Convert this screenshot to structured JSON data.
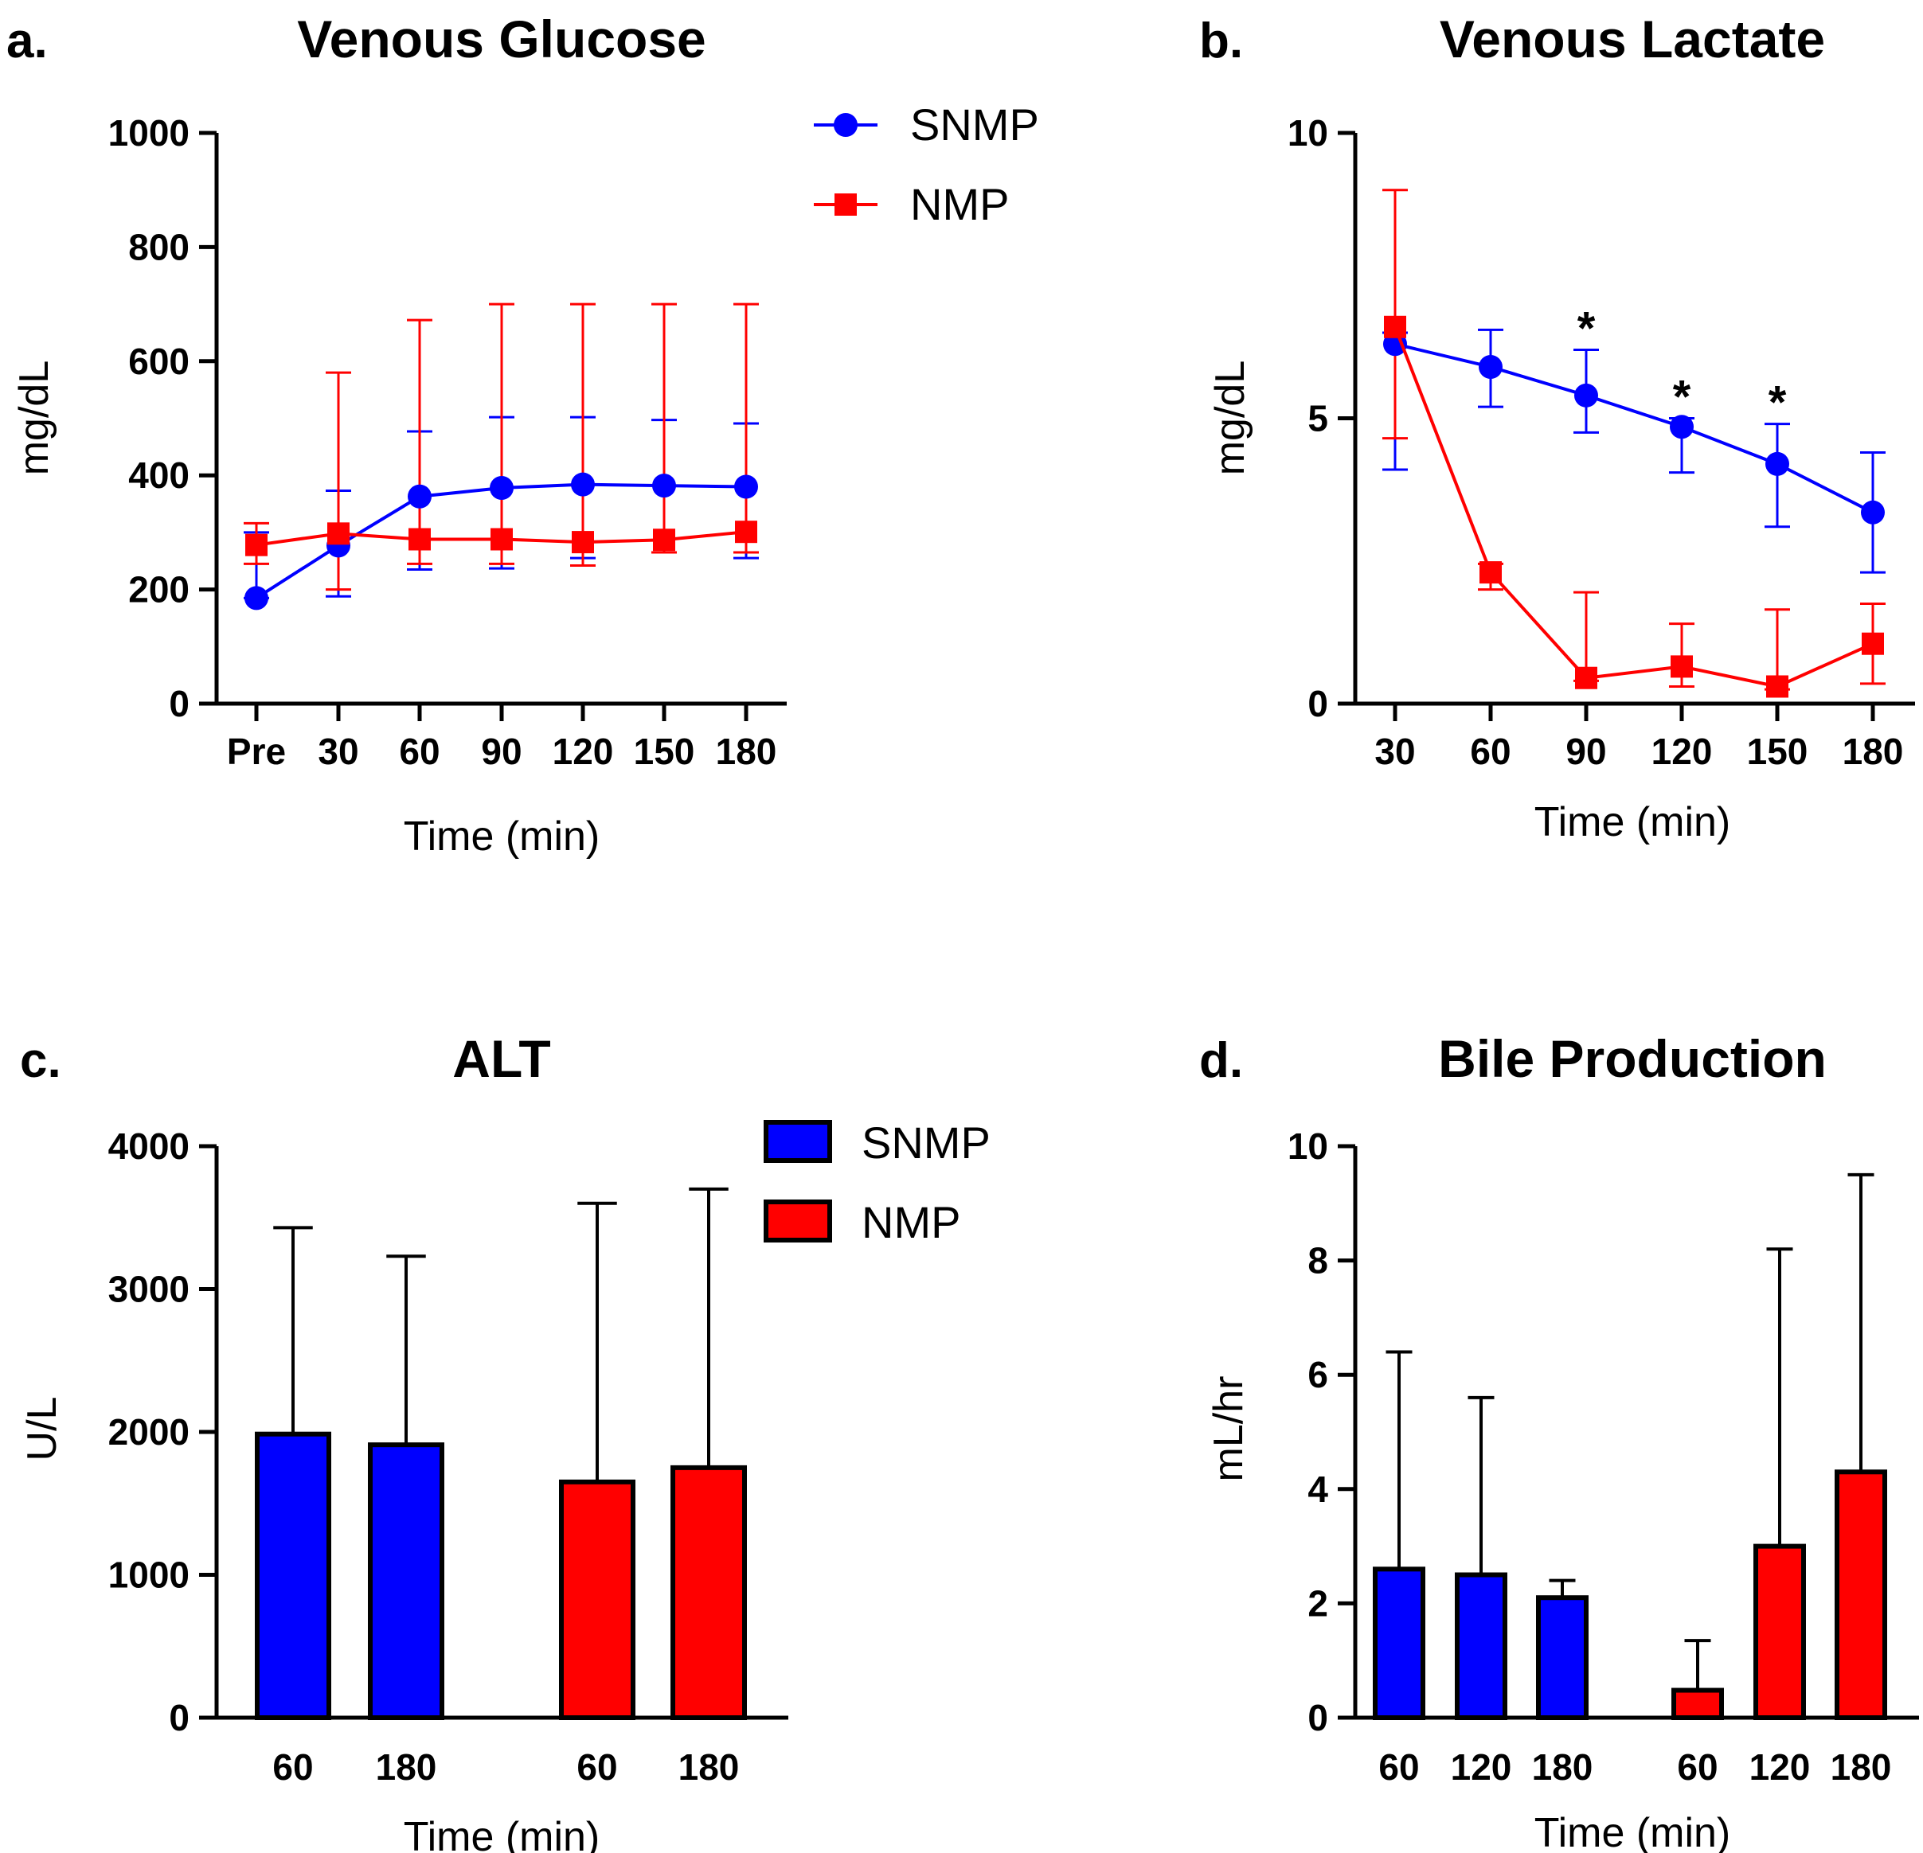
{
  "chart_data": [
    {
      "panel": "a.",
      "type": "line",
      "title": "Venous Glucose",
      "xlabel": "Time (min)",
      "ylabel": "mg/dL",
      "categories": [
        "Pre",
        "30",
        "60",
        "90",
        "120",
        "150",
        "180"
      ],
      "ylim": [
        0,
        1000
      ],
      "yticks": [
        0,
        200,
        400,
        600,
        800,
        1000
      ],
      "legend": {
        "position": "top-right",
        "entries": [
          "SNMP",
          "NMP"
        ]
      },
      "series": [
        {
          "name": "SNMP",
          "color": "#0000ff",
          "marker": "circle",
          "values": [
            185,
            277,
            363,
            378,
            384,
            382,
            380
          ],
          "err_upper": [
            300,
            373,
            477,
            502,
            502,
            497,
            491
          ],
          "err_lower": [
            185,
            188,
            235,
            237,
            255,
            265,
            255
          ]
        },
        {
          "name": "NMP",
          "color": "#ff0000",
          "marker": "square",
          "values": [
            278,
            298,
            288,
            288,
            283,
            287,
            301
          ],
          "err_upper": [
            316,
            580,
            672,
            700,
            700,
            700,
            700
          ],
          "err_lower": [
            245,
            200,
            245,
            245,
            242,
            265,
            265
          ]
        }
      ]
    },
    {
      "panel": "b.",
      "type": "line",
      "title": "Venous Lactate",
      "xlabel": "Time (min)",
      "ylabel": "mg/dL",
      "categories": [
        "30",
        "60",
        "90",
        "120",
        "150",
        "180"
      ],
      "ylim": [
        0,
        10
      ],
      "yticks": [
        0,
        5,
        10
      ],
      "annotations": [
        {
          "text": "*",
          "category": "90"
        },
        {
          "text": "*",
          "category": "120"
        },
        {
          "text": "*",
          "category": "150"
        }
      ],
      "series": [
        {
          "name": "SNMP",
          "color": "#0000ff",
          "marker": "circle",
          "values": [
            6.3,
            5.9,
            5.4,
            4.85,
            4.2,
            3.35
          ],
          "err_upper": [
            6.5,
            6.55,
            6.2,
            5.0,
            4.9,
            4.4
          ],
          "err_lower": [
            4.1,
            5.2,
            4.75,
            4.05,
            3.1,
            2.3
          ]
        },
        {
          "name": "NMP",
          "color": "#ff0000",
          "marker": "square",
          "values": [
            6.6,
            2.3,
            0.45,
            0.65,
            0.3,
            1.05
          ],
          "err_upper": [
            9.0,
            2.45,
            1.95,
            1.4,
            1.65,
            1.75
          ],
          "err_lower": [
            4.65,
            2.0,
            0.4,
            0.3,
            0.25,
            0.35
          ]
        }
      ]
    },
    {
      "panel": "c.",
      "type": "bar",
      "title": "ALT",
      "xlabel": "Time (min)",
      "ylabel": "U/L",
      "ylim": [
        0,
        4000
      ],
      "yticks": [
        0,
        1000,
        2000,
        3000,
        4000
      ],
      "legend": {
        "position": "top-right",
        "entries": [
          "SNMP",
          "NMP"
        ]
      },
      "groups": [
        {
          "name": "SNMP",
          "color": "#0000ff",
          "categories": [
            "60",
            "180"
          ],
          "values": [
            1985,
            1910
          ],
          "err_upper": [
            3430,
            3230
          ]
        },
        {
          "name": "NMP",
          "color": "#ff0000",
          "categories": [
            "60",
            "180"
          ],
          "values": [
            1650,
            1750
          ],
          "err_upper": [
            3600,
            3700
          ]
        }
      ]
    },
    {
      "panel": "d.",
      "type": "bar",
      "title": "Bile Production",
      "xlabel": "Time (min)",
      "ylabel": "mL/hr",
      "ylim": [
        0,
        10
      ],
      "yticks": [
        0,
        2,
        4,
        6,
        8,
        10
      ],
      "groups": [
        {
          "name": "SNMP",
          "color": "#0000ff",
          "categories": [
            "60",
            "120",
            "180"
          ],
          "values": [
            2.6,
            2.5,
            2.1
          ],
          "err_upper": [
            6.4,
            5.6,
            2.4
          ]
        },
        {
          "name": "NMP",
          "color": "#ff0000",
          "categories": [
            "60",
            "120",
            "180"
          ],
          "values": [
            0.48,
            3.0,
            4.3
          ],
          "err_upper": [
            1.35,
            8.2,
            9.5
          ]
        }
      ]
    }
  ]
}
